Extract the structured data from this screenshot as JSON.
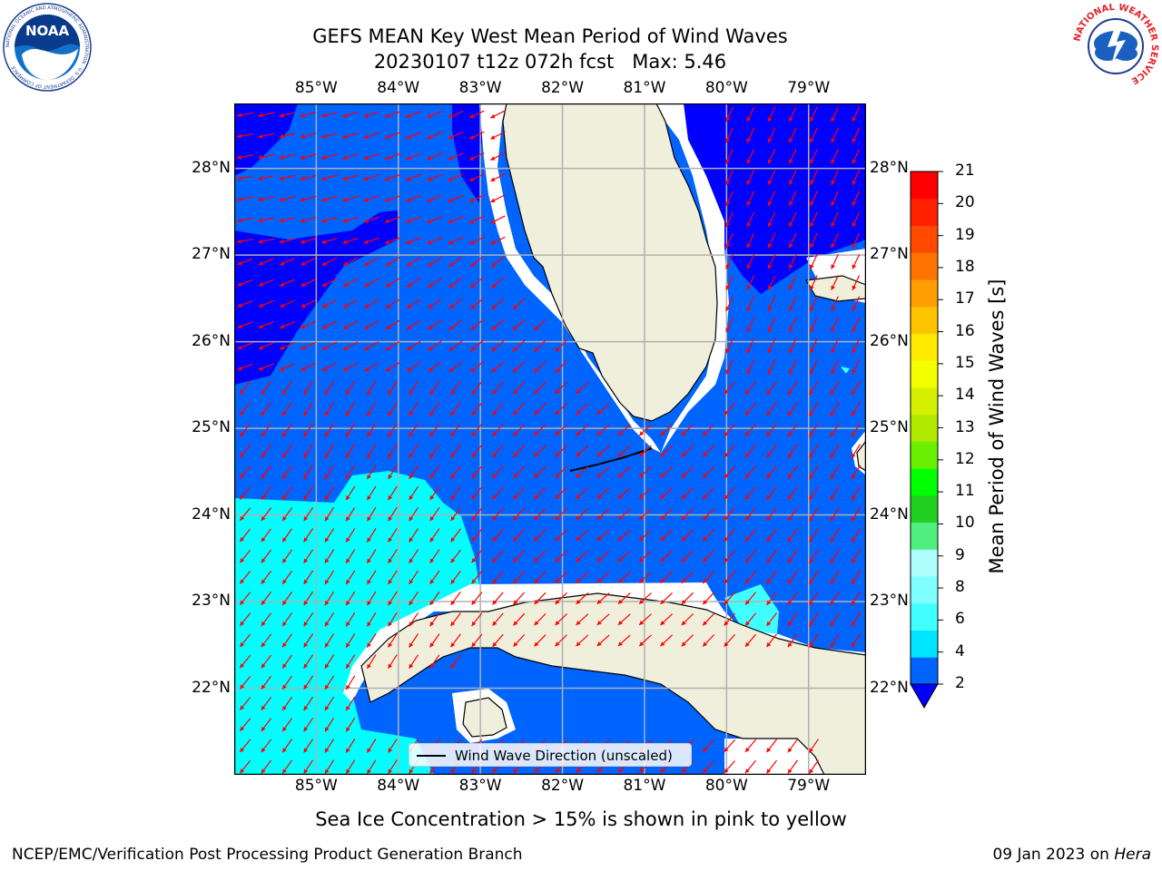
{
  "title": {
    "line1": "GEFS MEAN Key West Mean Period of Wind Waves",
    "line2": "20230107 t12z 072h fcst   Max: 5.46"
  },
  "map": {
    "lon_labels": [
      "85°W",
      "84°W",
      "83°W",
      "82°W",
      "81°W",
      "80°W",
      "79°W"
    ],
    "lat_labels": [
      "28°N",
      "27°N",
      "26°N",
      "25°N",
      "24°N",
      "23°N",
      "22°N"
    ],
    "lon_range": [
      -86.0,
      -78.3
    ],
    "lat_range": [
      21.0,
      28.75
    ],
    "land_color": "#efefdc",
    "vector_color": "#ff0000",
    "grid": true
  },
  "colorbar": {
    "label": "Mean Period of Wind Waves [s]",
    "ticks": [
      "2",
      "4",
      "6",
      "8",
      "9",
      "10",
      "11",
      "12",
      "13",
      "14",
      "15",
      "16",
      "17",
      "18",
      "19",
      "20",
      "21"
    ],
    "colors": [
      "#0064ff",
      "#00e4ff",
      "#40ffff",
      "#80ffff",
      "#b0ffff",
      "#50f080",
      "#20d020",
      "#00ff00",
      "#6aef00",
      "#b0e800",
      "#d4f000",
      "#f4ff00",
      "#ffea00",
      "#ffc400",
      "#ff9c00",
      "#ff7400",
      "#ff4a00",
      "#ff2000",
      "#ff0000"
    ],
    "under_color": "#0000ff",
    "extend": "min"
  },
  "legend": {
    "label": "Wind Wave Direction (unscaled)"
  },
  "sea_ice_note": "Sea Ice Concentration > 15% is shown in pink to yellow",
  "footer": {
    "left": "NCEP/EMC/Verification Post Processing Product Generation Branch",
    "date": "09 Jan 2023 on ",
    "host": "Hera"
  },
  "logos": {
    "noaa_text": "NOAA",
    "noaa_ring": "NATIONAL OCEANIC AND ATMOSPHERIC ADMINISTRATION · U.S. DEPARTMENT OF COMMERCE",
    "nws_ring": "NATIONAL WEATHER SERVICE"
  }
}
